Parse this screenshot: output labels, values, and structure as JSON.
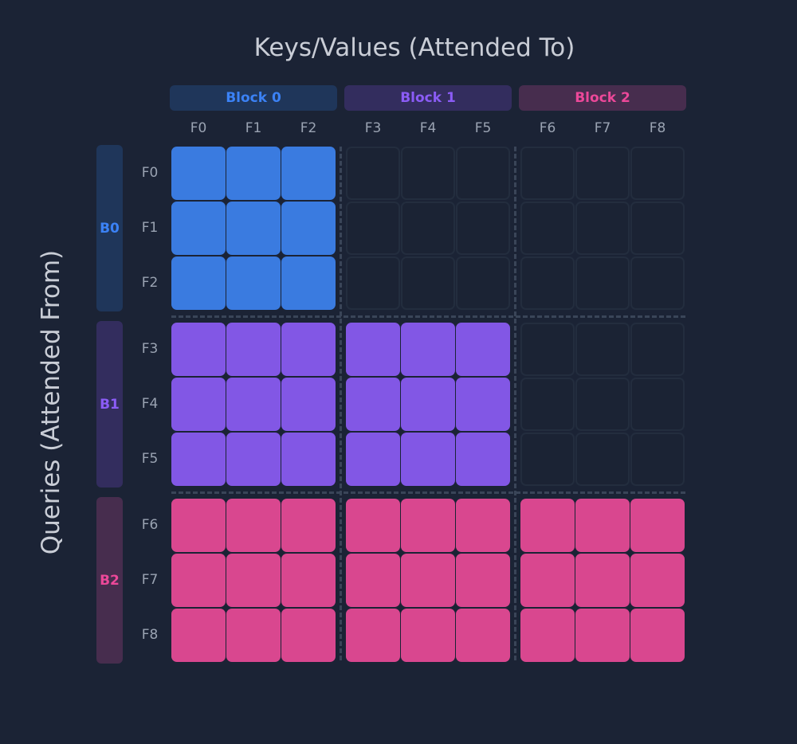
{
  "title": "Keys/Values (Attended To)",
  "ylabel": "Queries (Attended From)",
  "colors": {
    "background": "#1b2335",
    "block0": "#3a7be0",
    "block1": "#8257e5",
    "block2": "#d9478f"
  },
  "column_blocks": [
    {
      "label": "Block 0",
      "color": "#3b82f6",
      "bg": "#1f365a"
    },
    {
      "label": "Block 1",
      "color": "#8b5cf6",
      "bg": "#332d5e"
    },
    {
      "label": "Block 2",
      "color": "#ec4899",
      "bg": "#472d4e"
    }
  ],
  "row_blocks": [
    {
      "label": "B0",
      "color": "#3b82f6",
      "bg": "#1f365a"
    },
    {
      "label": "B1",
      "color": "#8b5cf6",
      "bg": "#332d5e"
    },
    {
      "label": "B2",
      "color": "#ec4899",
      "bg": "#472d4e"
    }
  ],
  "column_labels": [
    "F0",
    "F1",
    "F2",
    "F3",
    "F4",
    "F5",
    "F6",
    "F7",
    "F8"
  ],
  "row_labels": [
    "F0",
    "F1",
    "F2",
    "F3",
    "F4",
    "F5",
    "F6",
    "F7",
    "F8"
  ],
  "mask_rule": "block-causal: query block i attends to key blocks 0..i",
  "cell_colors": [
    "#3a7be0",
    "#8257e5",
    "#d9478f"
  ]
}
